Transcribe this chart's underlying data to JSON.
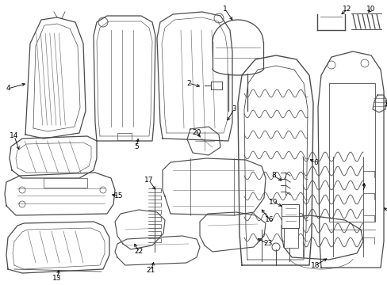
{
  "bg_color": "#ffffff",
  "line_color": "#4a4a4a",
  "text_color": "#000000",
  "figsize": [
    4.89,
    3.6
  ],
  "dpi": 100
}
